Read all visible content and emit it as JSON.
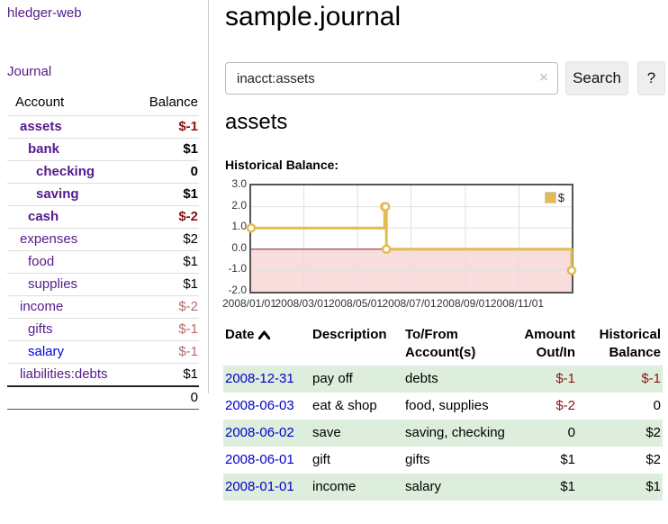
{
  "colors": {
    "link_purple": "#551a8b",
    "link_blue": "#0000dd",
    "negative_strong": "#8b1515",
    "negative_soft": "#b36b6b",
    "row_stripe_green": "#ddeedd"
  },
  "sidebar": {
    "brand": "hledger-web",
    "journal_link": "Journal",
    "accounts_table": {
      "headers": {
        "account": "Account",
        "balance": "Balance"
      },
      "rows": [
        {
          "name": "assets",
          "indent": 1,
          "bold": true,
          "balance": "$-1",
          "neg": "strong"
        },
        {
          "name": "bank",
          "indent": 2,
          "bold": true,
          "balance": "$1"
        },
        {
          "name": "checking",
          "indent": 3,
          "bold": true,
          "balance": "0"
        },
        {
          "name": "saving",
          "indent": 3,
          "bold": true,
          "balance": "$1"
        },
        {
          "name": "cash",
          "indent": 2,
          "bold": true,
          "balance": "$-2",
          "neg": "strong"
        },
        {
          "name": "expenses",
          "indent": 1,
          "balance": "$2"
        },
        {
          "name": "food",
          "indent": 2,
          "balance": "$1"
        },
        {
          "name": "supplies",
          "indent": 2,
          "balance": "$1"
        },
        {
          "name": "income",
          "indent": 1,
          "balance": "$-2",
          "neg": "soft"
        },
        {
          "name": "gifts",
          "indent": 2,
          "balance": "$-1",
          "neg": "soft"
        },
        {
          "name": "salary",
          "indent": 2,
          "balance": "$-1",
          "neg": "soft",
          "link": "blue"
        },
        {
          "name": "liabilities:debts",
          "indent": 1,
          "balance": "$1"
        }
      ],
      "total": "0"
    }
  },
  "header": {
    "title": "sample.journal"
  },
  "search": {
    "query": "inacct:assets",
    "clear_icon": "×",
    "button_label": "Search",
    "help_label": "?"
  },
  "account_page": {
    "heading": "assets",
    "chart_label": "Historical Balance:"
  },
  "chart_data": {
    "type": "line",
    "step": true,
    "title": "Historical Balance",
    "series": [
      {
        "name": "$",
        "color": "#e3bc4d",
        "points": [
          [
            "2008-01-01",
            1
          ],
          [
            "2008-06-01",
            2
          ],
          [
            "2008-06-02",
            2
          ],
          [
            "2008-06-03",
            0
          ],
          [
            "2008-12-31",
            -1
          ]
        ]
      }
    ],
    "xlim": [
      "2008-01-01",
      "2008-12-31"
    ],
    "ylim": [
      -2,
      3
    ],
    "yticks": [
      3.0,
      2.0,
      1.0,
      0.0,
      -1.0,
      -2.0
    ],
    "xticks": [
      "2008/01/01",
      "2008/03/01",
      "2008/05/01",
      "2008/07/01",
      "2008/09/01",
      "2008/11/01"
    ],
    "grid": true,
    "legend_position": "top-right",
    "negative_region_color": "#f9dcdc",
    "zero_line_color": "#8b1a1a",
    "gridline_color": "#e0e0e0",
    "marker_fill": "#ffffff"
  },
  "register": {
    "headers": {
      "date": "Date",
      "description": "Description",
      "accounts": "To/From Account(s)",
      "amount": "Amount Out/In",
      "balance": "Historical Balance"
    },
    "sort": {
      "column": "date",
      "direction": "ascending"
    },
    "rows": [
      {
        "date": "2008-12-31",
        "description": "pay off",
        "accounts": "debts",
        "amount": "$-1",
        "amount_neg": true,
        "balance": "$-1",
        "balance_neg": true
      },
      {
        "date": "2008-06-03",
        "description": "eat & shop",
        "accounts": "food, supplies",
        "amount": "$-2",
        "amount_neg": true,
        "balance": "0"
      },
      {
        "date": "2008-06-02",
        "description": "save",
        "accounts": "saving, checking",
        "amount": "0",
        "balance": "$2"
      },
      {
        "date": "2008-06-01",
        "description": "gift",
        "accounts": "gifts",
        "amount": "$1",
        "balance": "$2"
      },
      {
        "date": "2008-01-01",
        "description": "income",
        "accounts": "salary",
        "amount": "$1",
        "balance": "$1"
      }
    ]
  }
}
